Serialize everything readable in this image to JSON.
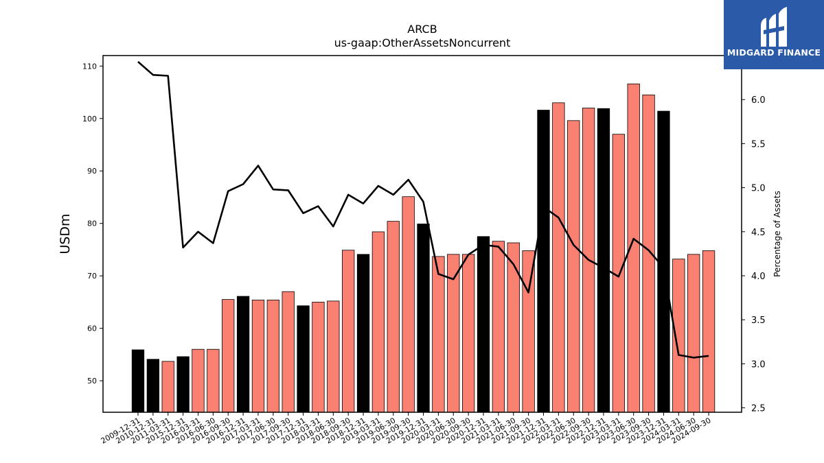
{
  "chart_data": {
    "type": "bar",
    "title": "ARCB",
    "subtitle": "us-gaap:OtherAssetsNoncurrent",
    "ylabel": "USDm",
    "y2label": "Percentage of Assets",
    "ylim": [
      44,
      112
    ],
    "y2lim": [
      2.45,
      6.5
    ],
    "yticks": [
      50,
      60,
      70,
      80,
      90,
      100,
      110
    ],
    "y2ticks": [
      2.5,
      3.0,
      3.5,
      4.0,
      4.5,
      5.0,
      5.5,
      6.0
    ],
    "y2tick_labels": [
      "2.5",
      "3.0",
      "3.5",
      "4.0",
      "4.5",
      "5.0",
      "5.5",
      "6.0"
    ],
    "grid": false,
    "categories": [
      "2009-12-31",
      "2010-12-31",
      "2011-03-31",
      "2015-12-31",
      "2016-03-31",
      "2016-06-30",
      "2016-09-30",
      "2016-12-31",
      "2017-03-31",
      "2017-06-30",
      "2017-09-30",
      "2017-12-31",
      "2018-03-31",
      "2018-06-30",
      "2018-09-30",
      "2018-12-31",
      "2019-03-31",
      "2019-06-30",
      "2019-09-30",
      "2019-12-31",
      "2020-03-31",
      "2020-06-30",
      "2020-09-30",
      "2020-12-31",
      "2021-03-31",
      "2021-06-30",
      "2021-09-30",
      "2021-12-31",
      "2022-03-31",
      "2022-06-30",
      "2022-09-30",
      "2022-12-31",
      "2023-03-31",
      "2023-06-30",
      "2023-09-30",
      "2023-12-31",
      "2024-03-31",
      "2024-06-30",
      "2024-09-30"
    ],
    "series": [
      {
        "type": "bar",
        "values": [
          55.9,
          54.1,
          53.7,
          54.6,
          56.0,
          56.0,
          65.5,
          66.1,
          65.4,
          65.4,
          67.0,
          64.3,
          65.0,
          65.2,
          74.9,
          74.1,
          78.4,
          80.4,
          85.1,
          79.9,
          73.7,
          74.1,
          74.1,
          77.5,
          76.6,
          76.3,
          74.8,
          101.6,
          103.0,
          99.6,
          102.0,
          101.9,
          97.0,
          106.6,
          104.5,
          101.4,
          73.2,
          74.1,
          74.8
        ],
        "colors": [
          "#000000",
          "#000000",
          "#fa8072",
          "#000000",
          "#fa8072",
          "#fa8072",
          "#fa8072",
          "#000000",
          "#fa8072",
          "#fa8072",
          "#fa8072",
          "#000000",
          "#fa8072",
          "#fa8072",
          "#fa8072",
          "#000000",
          "#fa8072",
          "#fa8072",
          "#fa8072",
          "#000000",
          "#fa8072",
          "#fa8072",
          "#fa8072",
          "#000000",
          "#fa8072",
          "#fa8072",
          "#fa8072",
          "#000000",
          "#fa8072",
          "#fa8072",
          "#fa8072",
          "#000000",
          "#fa8072",
          "#fa8072",
          "#fa8072",
          "#000000",
          "#fa8072",
          "#fa8072",
          "#fa8072"
        ]
      },
      {
        "type": "line",
        "axis": "right",
        "color": "#000000",
        "values": [
          6.43,
          6.28,
          6.27,
          4.32,
          4.5,
          4.37,
          4.96,
          5.04,
          5.25,
          4.98,
          4.97,
          4.71,
          4.79,
          4.56,
          4.92,
          4.82,
          5.02,
          4.92,
          5.09,
          4.84,
          4.02,
          3.96,
          4.24,
          4.35,
          4.33,
          4.13,
          3.81,
          4.78,
          4.66,
          4.35,
          4.18,
          4.09,
          3.99,
          4.42,
          4.29,
          4.09,
          3.1,
          3.07,
          3.09
        ]
      }
    ]
  },
  "logo": {
    "text": "MIDGARD FINANCE",
    "background": "#2a5aa8"
  }
}
